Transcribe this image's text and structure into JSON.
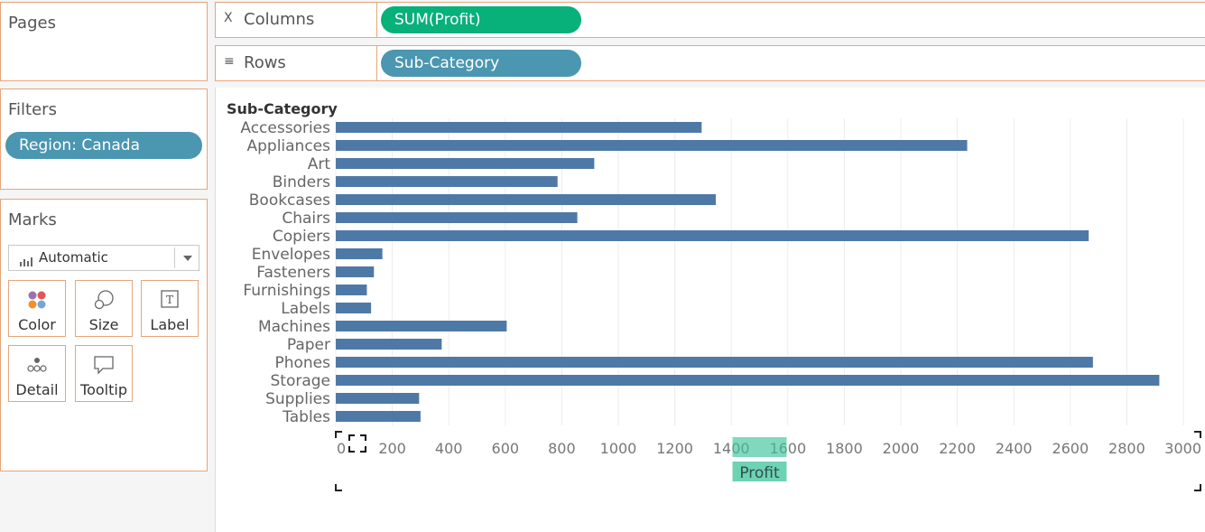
{
  "pages": {
    "title": "Pages"
  },
  "shelves": {
    "columns": {
      "label": "Columns",
      "icon": "columns-icon",
      "pill": "SUM(Profit)"
    },
    "rows": {
      "label": "Rows",
      "icon": "rows-icon",
      "pill": "Sub-Category"
    }
  },
  "filters": {
    "title": "Filters",
    "items": [
      "Region: Canada"
    ]
  },
  "marks": {
    "title": "Marks",
    "mark_type": "Automatic",
    "cards": [
      {
        "label": "Color",
        "icon": "color-icon"
      },
      {
        "label": "Size",
        "icon": "size-icon"
      },
      {
        "label": "Label",
        "icon": "label-icon"
      },
      {
        "label": "Detail",
        "icon": "detail-icon"
      },
      {
        "label": "Tooltip",
        "icon": "tooltip-icon"
      }
    ]
  },
  "colors": {
    "bar": "#4e79a7",
    "accent_green": "#08b07a",
    "pill_blue": "#4b96b0",
    "panel_border": "#e8a57a"
  },
  "chart_data": {
    "type": "bar",
    "orientation": "horizontal",
    "row_header": "Sub-Category",
    "xlabel": "Profit",
    "categories": [
      "Accessories",
      "Appliances",
      "Art",
      "Binders",
      "Bookcases",
      "Chairs",
      "Copiers",
      "Envelopes",
      "Fasteners",
      "Furnishings",
      "Labels",
      "Machines",
      "Paper",
      "Phones",
      "Storage",
      "Supplies",
      "Tables"
    ],
    "values": [
      1295,
      2235,
      915,
      785,
      1345,
      855,
      2665,
      165,
      135,
      110,
      125,
      605,
      375,
      2680,
      2915,
      295,
      300
    ],
    "xlim": [
      0,
      3000
    ],
    "xticks": [
      0,
      200,
      400,
      600,
      800,
      1000,
      1200,
      1400,
      1600,
      1800,
      2000,
      2200,
      2400,
      2600,
      2800,
      3000
    ],
    "grid": true
  }
}
